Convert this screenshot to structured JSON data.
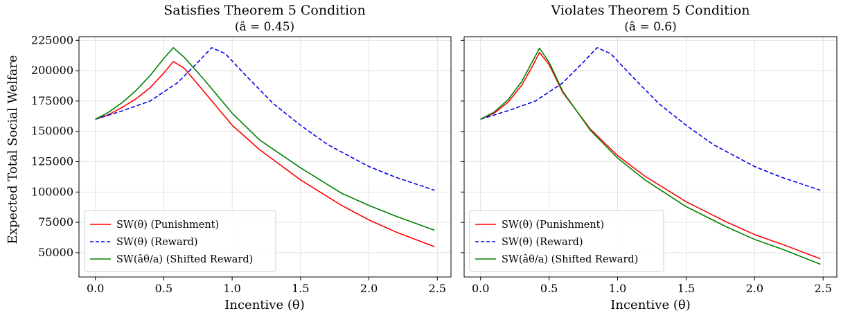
{
  "figure": {
    "ylabel": "Expected Total Social Welfare"
  },
  "chart_data": [
    {
      "type": "line",
      "title": "Satisfies Theorem 5 Condition",
      "subtitle": "(â = 0.45)",
      "xlabel": "Incentive (θ)",
      "xlim": [
        -0.12,
        2.6
      ],
      "ylim": [
        30000,
        228000
      ],
      "xticks": [
        "0.0",
        "0.5",
        "1.0",
        "1.5",
        "2.0",
        "2.5"
      ],
      "yticks": [
        "50000",
        "75000",
        "100000",
        "125000",
        "150000",
        "175000",
        "200000",
        "225000"
      ],
      "grid": true,
      "legend_position": "lower-left",
      "series": [
        {
          "name": "SW(θ) (Punishment)",
          "color": "#ff0000",
          "dash": "solid",
          "x": [
            0.0,
            0.1,
            0.2,
            0.3,
            0.4,
            0.5,
            0.57,
            0.65,
            0.8,
            1.0,
            1.2,
            1.5,
            1.8,
            2.0,
            2.2,
            2.48
          ],
          "y": [
            160000,
            164000,
            170000,
            177000,
            186000,
            198000,
            207500,
            202000,
            182000,
            155000,
            135000,
            110000,
            89000,
            77000,
            67000,
            55000
          ]
        },
        {
          "name": "SW(θ) (Reward)",
          "color": "#0000ee",
          "dash": "dashed",
          "x": [
            0.0,
            0.2,
            0.4,
            0.6,
            0.75,
            0.85,
            0.95,
            1.1,
            1.3,
            1.5,
            1.7,
            2.0,
            2.2,
            2.48
          ],
          "y": [
            160000,
            167000,
            175000,
            190000,
            207000,
            219000,
            214000,
            196000,
            173000,
            155000,
            139000,
            121000,
            112000,
            101500
          ]
        },
        {
          "name": "SW(âθ/a) (Shifted Reward)",
          "color": "#008000",
          "dash": "solid",
          "x": [
            0.0,
            0.1,
            0.2,
            0.3,
            0.4,
            0.5,
            0.57,
            0.65,
            0.8,
            1.0,
            1.2,
            1.5,
            1.8,
            2.0,
            2.2,
            2.48
          ],
          "y": [
            160000,
            166000,
            174000,
            184000,
            196000,
            210000,
            219000,
            211000,
            192000,
            165000,
            143000,
            120000,
            99000,
            89000,
            80000,
            68500
          ]
        }
      ]
    },
    {
      "type": "line",
      "title": "Violates Theorem 5 Condition",
      "subtitle": "(â = 0.6)",
      "xlabel": "Incentive (θ)",
      "xlim": [
        -0.12,
        2.6
      ],
      "ylim": [
        30000,
        228000
      ],
      "xticks": [
        "0.0",
        "0.5",
        "1.0",
        "1.5",
        "2.0",
        "2.5"
      ],
      "yticks": [
        "50000",
        "75000",
        "100000",
        "125000",
        "150000",
        "175000",
        "200000",
        "225000"
      ],
      "grid": true,
      "legend_position": "lower-left",
      "series": [
        {
          "name": "SW(θ) (Punishment)",
          "color": "#ff0000",
          "dash": "solid",
          "x": [
            0.0,
            0.1,
            0.2,
            0.3,
            0.38,
            0.43,
            0.5,
            0.6,
            0.8,
            1.0,
            1.2,
            1.5,
            1.8,
            2.0,
            2.2,
            2.48
          ],
          "y": [
            160000,
            165000,
            174000,
            188000,
            204000,
            215000,
            205000,
            182000,
            152000,
            130000,
            113000,
            92000,
            75000,
            65000,
            57000,
            45000
          ]
        },
        {
          "name": "SW(θ) (Reward)",
          "color": "#0000ee",
          "dash": "dashed",
          "x": [
            0.0,
            0.2,
            0.4,
            0.6,
            0.75,
            0.85,
            0.95,
            1.1,
            1.3,
            1.5,
            1.7,
            2.0,
            2.2,
            2.48
          ],
          "y": [
            160000,
            167000,
            175000,
            190000,
            207000,
            219000,
            214000,
            196000,
            173000,
            155000,
            139000,
            121000,
            112000,
            101500
          ]
        },
        {
          "name": "SW(âθ/a) (Shifted Reward)",
          "color": "#008000",
          "dash": "solid",
          "x": [
            0.0,
            0.1,
            0.2,
            0.3,
            0.38,
            0.43,
            0.5,
            0.6,
            0.8,
            1.0,
            1.2,
            1.5,
            1.8,
            2.0,
            2.2,
            2.48
          ],
          "y": [
            160000,
            166000,
            176000,
            191000,
            208000,
            218500,
            207000,
            183000,
            151000,
            128000,
            110000,
            88000,
            71000,
            61000,
            53000,
            40500
          ]
        }
      ]
    }
  ]
}
